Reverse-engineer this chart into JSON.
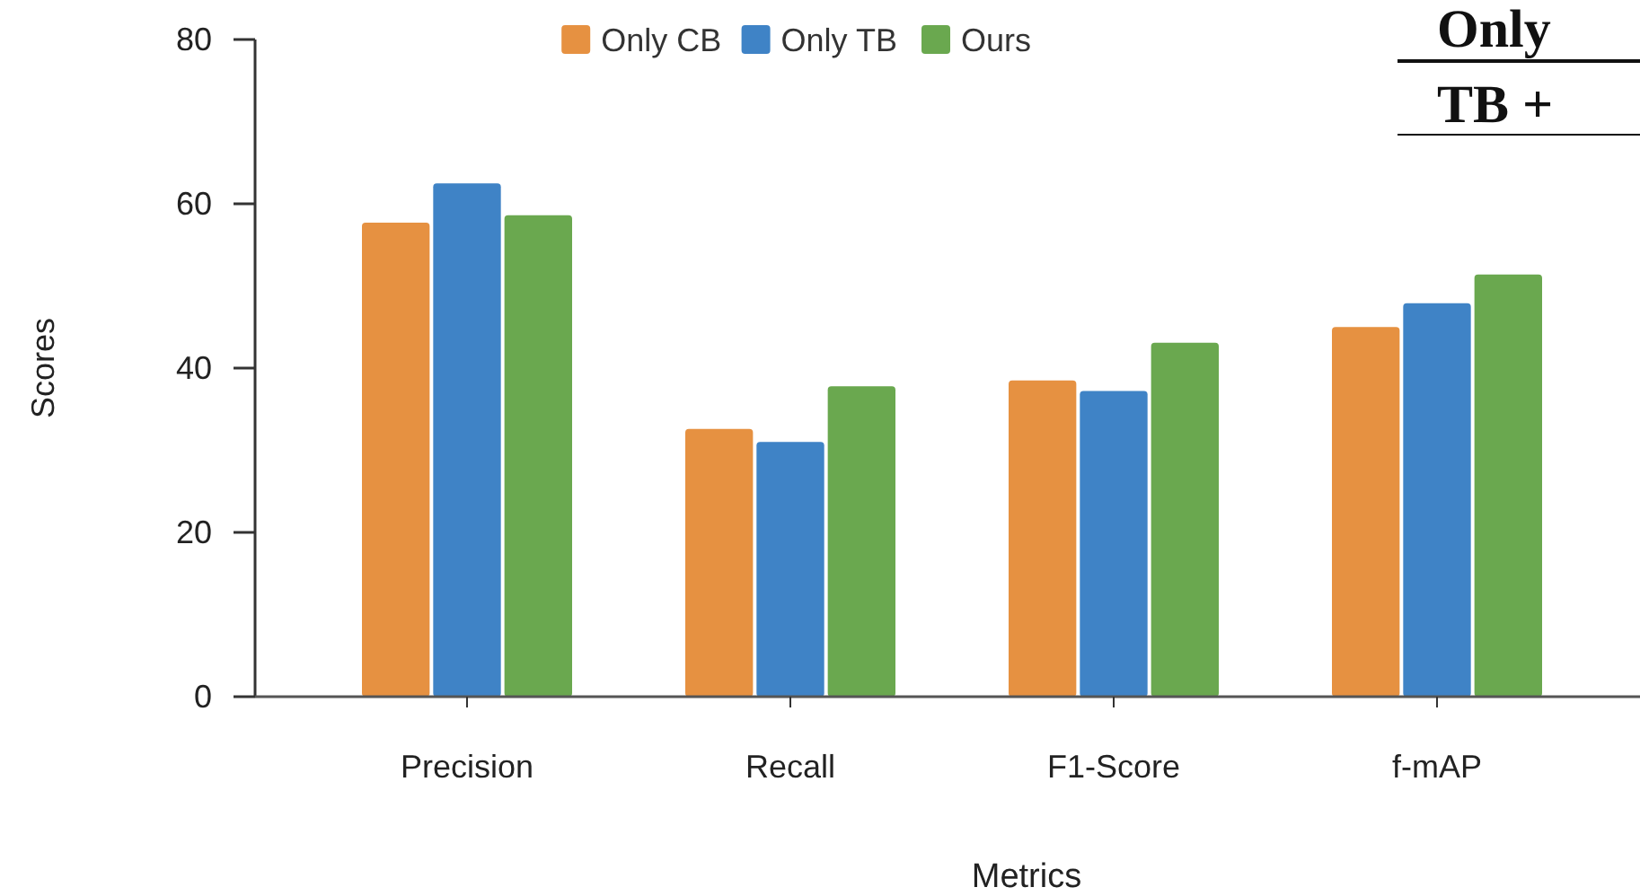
{
  "chart_data": {
    "type": "bar",
    "xlabel": "Metrics",
    "ylabel": "Scores",
    "categories": [
      "Precision",
      "Recall",
      "F1-Score",
      "f-mAP"
    ],
    "series": [
      {
        "name": "Only CB",
        "color": "#e69141",
        "values": [
          57.7,
          32.6,
          38.5,
          45.0
        ]
      },
      {
        "name": "Only TB",
        "color": "#3f83c6",
        "values": [
          62.5,
          31.0,
          37.2,
          47.9
        ]
      },
      {
        "name": "Ours",
        "color": "#6aa84f",
        "values": [
          58.6,
          37.8,
          43.1,
          51.4
        ]
      }
    ],
    "ylim": [
      0,
      80
    ],
    "yticks": [
      0,
      20,
      40,
      60,
      80
    ],
    "grid": false,
    "legend": "top",
    "annotations": [
      "Only",
      "TB +"
    ]
  }
}
